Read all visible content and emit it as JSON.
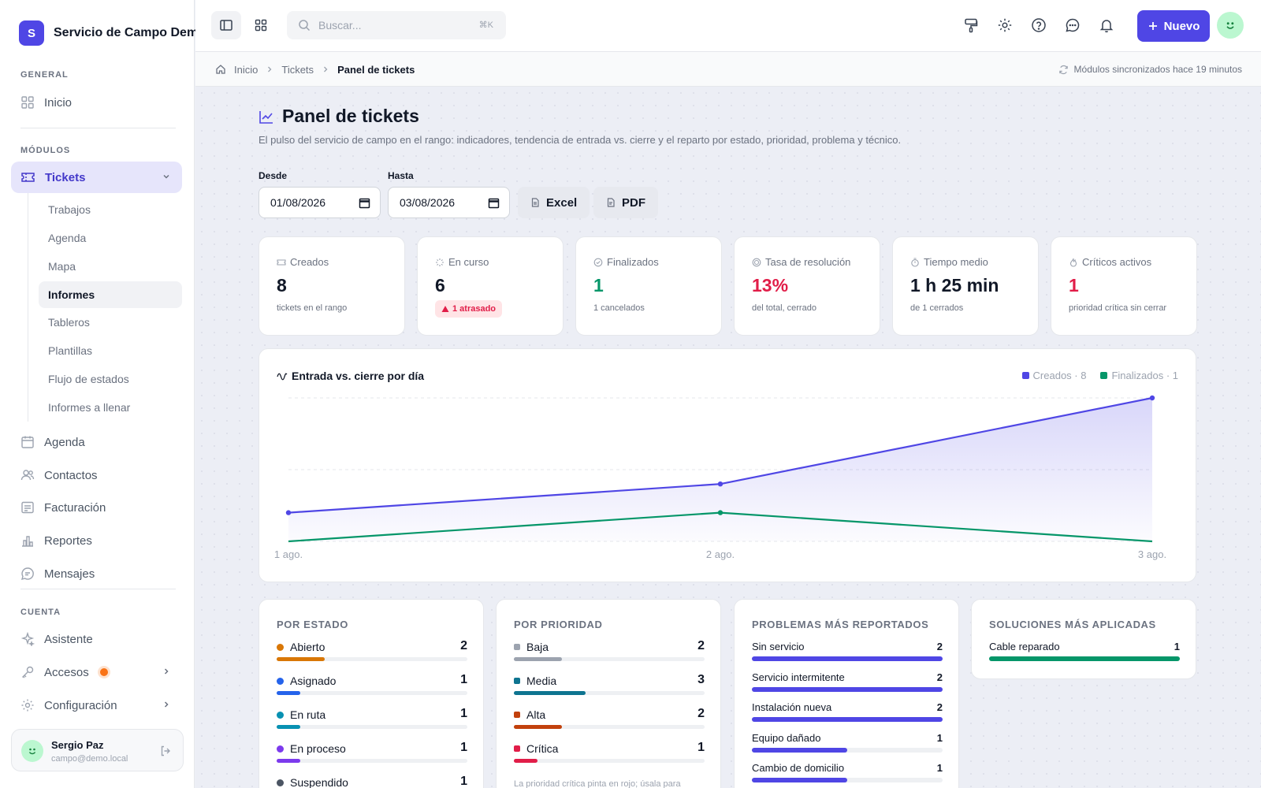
{
  "app": {
    "logo_letter": "S",
    "name": "Servicio de Campo Demo"
  },
  "sidebar": {
    "general_label": "GENERAL",
    "inicio": "Inicio",
    "modulos_label": "MÓDULOS",
    "tickets": "Tickets",
    "tickets_sub": [
      "Trabajos",
      "Agenda",
      "Mapa",
      "Informes",
      "Tableros",
      "Plantillas",
      "Flujo de estados",
      "Informes a llenar"
    ],
    "agenda": "Agenda",
    "contactos": "Contactos",
    "facturacion": "Facturación",
    "reportes": "Reportes",
    "mensajes": "Mensajes",
    "cuenta_label": "CUENTA",
    "asistente": "Asistente",
    "accesos": "Accesos",
    "configuracion": "Configuración",
    "user": {
      "name": "Sergio Paz",
      "email": "campo@demo.local"
    }
  },
  "topbar": {
    "search_placeholder": "Buscar...",
    "search_kbd": "⌘K",
    "new_label": "Nuevo"
  },
  "breadcrumb": {
    "items": [
      "Inicio",
      "Tickets"
    ],
    "current": "Panel de tickets",
    "sync": "Módulos sincronizados hace 19 minutos"
  },
  "page": {
    "title": "Panel de tickets",
    "subtitle": "El pulso del servicio de campo en el rango: indicadores, tendencia de entrada vs. cierre y el reparto por estado, prioridad, problema y técnico.",
    "desde_label": "Desde",
    "desde_value": "01/08/2026",
    "hasta_label": "Hasta",
    "hasta_value": "03/08/2026",
    "excel": "Excel",
    "pdf": "PDF"
  },
  "kpis": [
    {
      "label": "Creados",
      "value": "8",
      "note": "tickets en el rango"
    },
    {
      "label": "En curso",
      "value": "6",
      "badge": "1 atrasado"
    },
    {
      "label": "Finalizados",
      "value": "1",
      "note": "1 cancelados"
    },
    {
      "label": "Tasa de resolución",
      "value": "13%",
      "note": "del total, cerrado"
    },
    {
      "label": "Tiempo medio",
      "value": "1 h 25 min",
      "note": "de 1 cerrados"
    },
    {
      "label": "Críticos activos",
      "value": "1",
      "note": "prioridad crítica sin cerrar"
    }
  ],
  "chart_data": {
    "type": "area",
    "title": "Entrada vs. cierre por día",
    "categories": [
      "1 ago.",
      "2 ago.",
      "3 ago."
    ],
    "series": [
      {
        "name": "Creados",
        "legend": "Creados · 8",
        "values": [
          1,
          2,
          5
        ],
        "color": "#4f46e5"
      },
      {
        "name": "Finalizados",
        "legend": "Finalizados · 1",
        "values": [
          0,
          1,
          0
        ],
        "color": "#059669"
      }
    ],
    "ylim": [
      0,
      5
    ],
    "grid": true,
    "legend_position": "top-right"
  },
  "por_estado": {
    "title": "POR ESTADO",
    "items": [
      {
        "label": "Abierto",
        "count": 2,
        "color": "#d97706"
      },
      {
        "label": "Asignado",
        "count": 1,
        "color": "#2563eb"
      },
      {
        "label": "En ruta",
        "count": 1,
        "color": "#0891b2"
      },
      {
        "label": "En proceso",
        "count": 1,
        "color": "#7c3aed"
      },
      {
        "label": "Suspendido",
        "count": 1,
        "color": "#4b5563"
      }
    ],
    "max": 8
  },
  "por_prioridad": {
    "title": "POR PRIORIDAD",
    "items": [
      {
        "label": "Baja",
        "count": 2,
        "color": "#9ca3af"
      },
      {
        "label": "Media",
        "count": 3,
        "color": "#0e7490"
      },
      {
        "label": "Alta",
        "count": 2,
        "color": "#c2410c"
      },
      {
        "label": "Crítica",
        "count": 1,
        "color": "#e11d48"
      }
    ],
    "max": 8,
    "note": "La prioridad crítica pinta en rojo; úsala para"
  },
  "problemas": {
    "title": "PROBLEMAS MÁS REPORTADOS",
    "items": [
      {
        "label": "Sin servicio",
        "count": 2
      },
      {
        "label": "Servicio intermitente",
        "count": 2
      },
      {
        "label": "Instalación nueva",
        "count": 2
      },
      {
        "label": "Equipo dañado",
        "count": 1
      },
      {
        "label": "Cambio de domicilio",
        "count": 1
      }
    ],
    "max": 2,
    "color": "#4f46e5"
  },
  "soluciones": {
    "title": "SOLUCIONES MÁS APLICADAS",
    "items": [
      {
        "label": "Cable reparado",
        "count": 1
      }
    ],
    "max": 1,
    "color": "#059669"
  }
}
